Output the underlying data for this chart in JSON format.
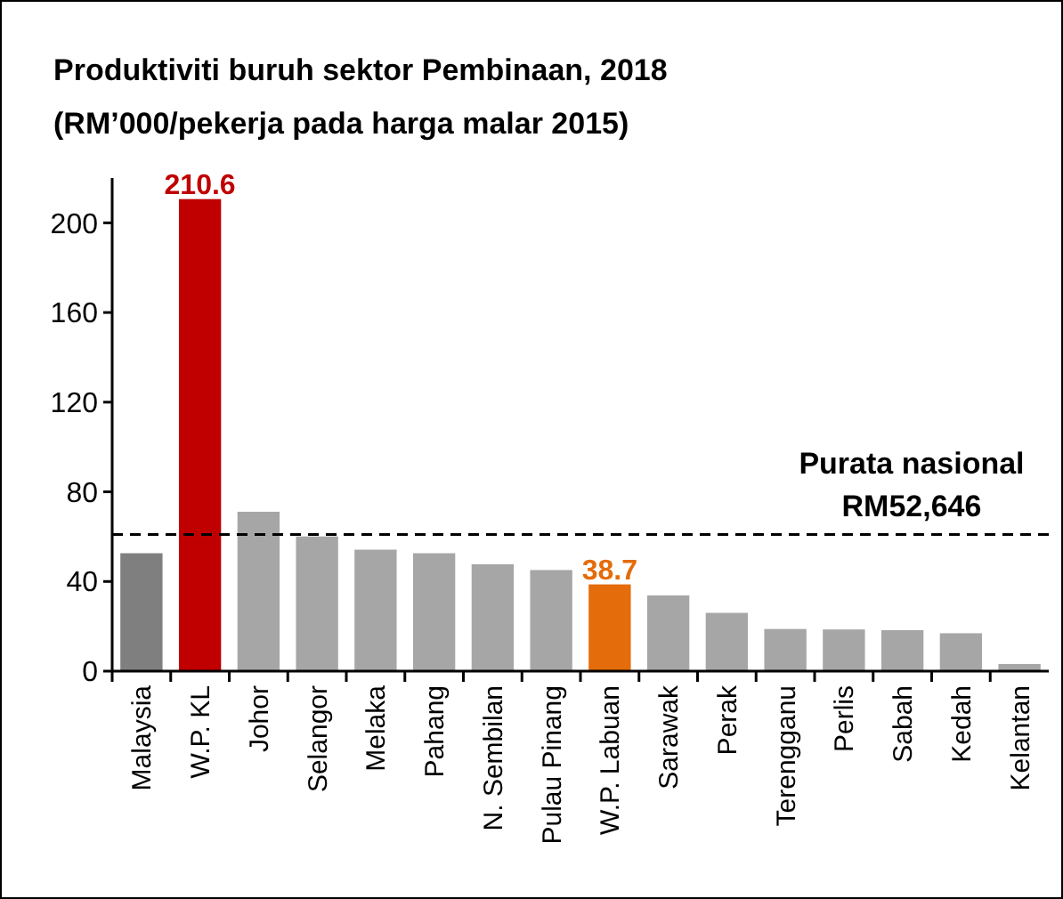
{
  "chart_data": {
    "type": "bar",
    "title": "Produktiviti buruh sektor Pembinaan, 2018\n(RM’000/pekerja pada harga malar 2015)",
    "categories": [
      "Malaysia",
      "W.P. KL",
      "Johor",
      "Selangor",
      "Melaka",
      "Pahang",
      "N. Sembilan",
      "Pulau Pinang",
      "W.P. Labuan",
      "Sarawak",
      "Perak",
      "Terengganu",
      "Perlis",
      "Sabah",
      "Kedah",
      "Kelantan"
    ],
    "values": [
      52.6,
      210.6,
      71.1,
      60.1,
      54.2,
      52.6,
      47.7,
      45.1,
      38.7,
      33.8,
      26.0,
      18.8,
      18.6,
      18.3,
      16.9,
      3.2
    ],
    "colors": [
      "#7f7f7f",
      "#c00000",
      "#a6a6a6",
      "#a6a6a6",
      "#a6a6a6",
      "#a6a6a6",
      "#a6a6a6",
      "#a6a6a6",
      "#e46c0a",
      "#a6a6a6",
      "#a6a6a6",
      "#a6a6a6",
      "#a6a6a6",
      "#a6a6a6",
      "#a6a6a6",
      "#a6a6a6"
    ],
    "value_labels": [
      null,
      "210.6",
      null,
      null,
      null,
      null,
      null,
      null,
      "38.7",
      null,
      null,
      null,
      null,
      null,
      null,
      null
    ],
    "ylim": [
      0,
      220
    ],
    "yticks": [
      0,
      40,
      80,
      120,
      160,
      200
    ],
    "grid": false,
    "ref_lines": [
      {
        "axis": "y",
        "value": 61,
        "label": "Purata nasional\nRM52,646",
        "color": "#000000",
        "line_style": "dashed"
      }
    ]
  }
}
